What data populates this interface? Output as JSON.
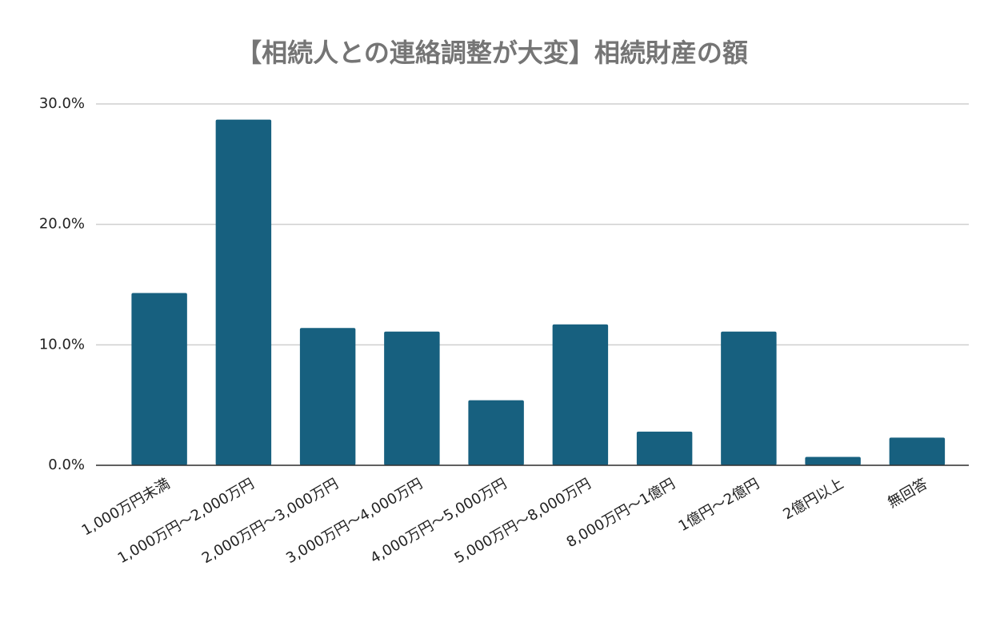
{
  "chart_data": {
    "type": "bar",
    "title": "【相続人との連絡調整が大変】相続財産の額",
    "categories": [
      "1,000万円未満",
      "1,000万円～2,000万円",
      "2,000万円～3,000万円",
      "3,000万円～4,000万円",
      "4,000万円～5,000万円",
      "5,000万円～8,000万円",
      "8,000万円～1億円",
      "1億円～2億円",
      "2億円以上",
      "無回答"
    ],
    "values": [
      14.3,
      28.7,
      11.4,
      11.1,
      5.4,
      11.7,
      2.8,
      11.1,
      0.7,
      2.3
    ],
    "color": "#17607f",
    "ylim": [
      0,
      30
    ],
    "yticks": [
      {
        "value": 0,
        "label": "0.0%"
      },
      {
        "value": 10,
        "label": "10.0%"
      },
      {
        "value": 20,
        "label": "20.0%"
      },
      {
        "value": 30,
        "label": "30.0%"
      }
    ],
    "grid": true
  }
}
